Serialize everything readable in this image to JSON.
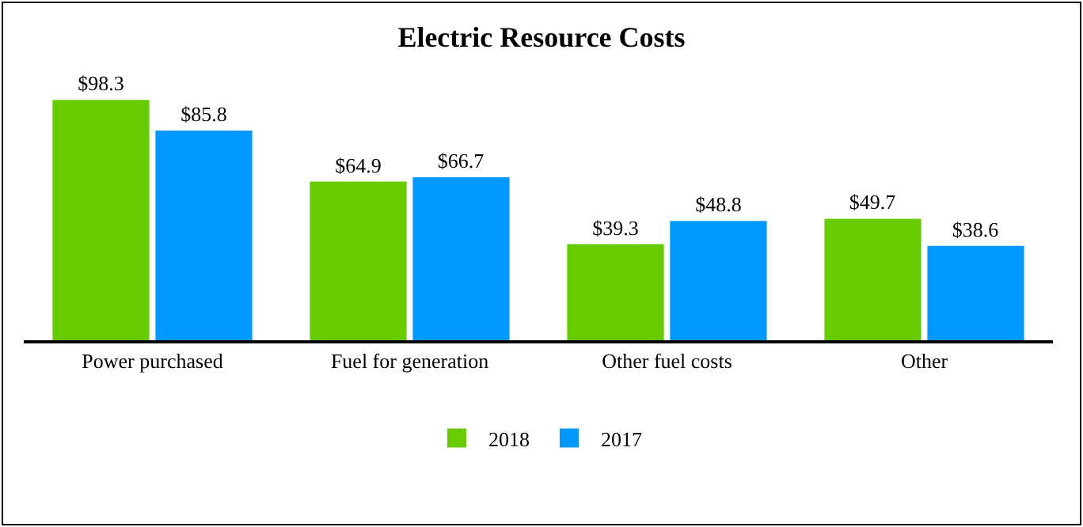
{
  "chart_data": {
    "type": "bar",
    "title": "Electric Resource Costs",
    "categories": [
      "Power purchased",
      "Fuel for generation",
      "Other fuel costs",
      "Other"
    ],
    "series": [
      {
        "name": "2018",
        "color": "#66cc00",
        "values": [
          98.3,
          64.9,
          39.3,
          49.7
        ],
        "value_labels": [
          "$98.3",
          "$64.9",
          "$39.3",
          "$49.7"
        ]
      },
      {
        "name": "2017",
        "color": "#0099ff",
        "values": [
          85.8,
          66.7,
          48.8,
          38.6
        ],
        "value_labels": [
          "$85.8",
          "$66.7",
          "$48.8",
          "$38.6"
        ]
      }
    ],
    "legend": "bottom"
  }
}
